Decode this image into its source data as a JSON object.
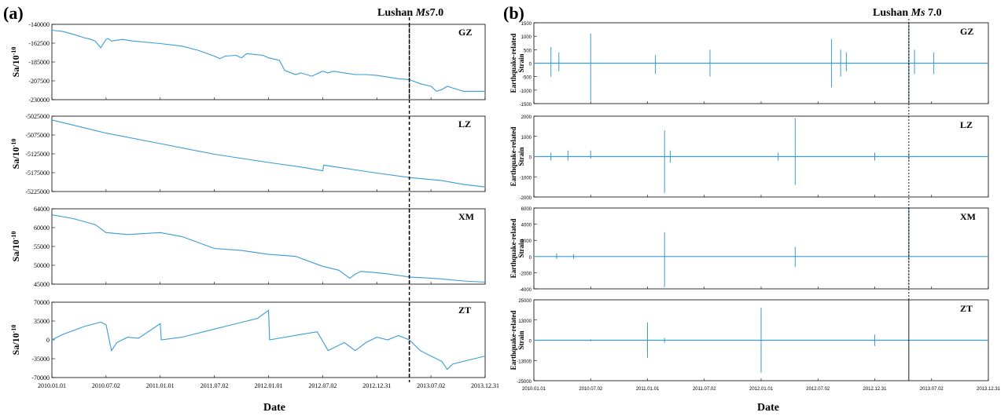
{
  "panel_a": {
    "label": "(a)",
    "event_label": {
      "prefix": "Lushan ",
      "magnitude": "Ms",
      "value": "7.0"
    },
    "xlabel": "Date",
    "ylabel": "Sa/10",
    "ylabel_exp": "-10",
    "x_ticks": [
      "2010.01.01",
      "2010.07.02",
      "2011.01.01",
      "2011.07.02",
      "2012.01.01",
      "2012.07.02",
      "2012.12.31",
      "2013.07.02",
      "2013.12.31"
    ]
  },
  "panel_b": {
    "label": "(b)",
    "event_label": {
      "prefix": "Lushan ",
      "magnitude": "Ms",
      "value": " 7.0"
    },
    "xlabel": "Date",
    "ylabel_line1": "Earthquake-related",
    "ylabel_line2": "Strain",
    "x_ticks": [
      "2010.01.01",
      "2010.07.02",
      "2011.01.01",
      "2011.07.02",
      "2012.01.01",
      "2012.07.02",
      "2012.12.31",
      "2013.07.02",
      "2013.12.31"
    ]
  },
  "colors": {
    "series": "#3a9bd5",
    "event_line": "#000000",
    "frame": "#000000"
  },
  "chart_data": [
    {
      "type": "line",
      "panel": "a",
      "station": "GZ",
      "ylim": [
        -230000,
        -140000
      ],
      "y_ticks": [
        "-140000",
        "-162500",
        "-185000",
        "-207500",
        "-230000"
      ],
      "event_x": 2013.3,
      "x": [
        2010.0,
        2010.1,
        2010.2,
        2010.3,
        2010.35,
        2010.4,
        2010.45,
        2010.5,
        2010.52,
        2010.55,
        2010.65,
        2010.75,
        2011.0,
        2011.2,
        2011.35,
        2011.5,
        2011.55,
        2011.6,
        2011.7,
        2011.75,
        2011.8,
        2011.95,
        2012.0,
        2012.1,
        2012.15,
        2012.25,
        2012.3,
        2012.4,
        2012.5,
        2012.55,
        2012.6,
        2012.7,
        2012.8,
        2012.9,
        2013.0,
        2013.1,
        2013.2,
        2013.3,
        2013.4,
        2013.5,
        2013.55,
        2013.6,
        2013.65,
        2013.7,
        2013.8,
        2013.9,
        2014.0
      ],
      "y": [
        -147000,
        -148500,
        -152000,
        -156000,
        -157500,
        -160000,
        -168000,
        -158000,
        -157000,
        -160000,
        -158000,
        -160000,
        -163000,
        -166000,
        -171000,
        -178000,
        -181000,
        -178000,
        -177000,
        -180000,
        -175000,
        -177000,
        -180000,
        -183000,
        -195000,
        -200000,
        -198000,
        -202000,
        -196000,
        -198000,
        -196000,
        -198000,
        -200000,
        -200000,
        -201000,
        -203000,
        -205000,
        -206000,
        -211000,
        -214000,
        -220000,
        -218000,
        -214000,
        -216000,
        -220000,
        -220000,
        -220000
      ]
    },
    {
      "type": "line",
      "panel": "a",
      "station": "LZ",
      "ylim": [
        -5225000,
        -5025000
      ],
      "y_ticks": [
        "-5025000",
        "-5075000",
        "-5125000",
        "-5175000",
        "-5225000"
      ],
      "event_x": 2013.3,
      "x": [
        2010.0,
        2010.5,
        2011.0,
        2011.5,
        2012.0,
        2012.3,
        2012.5,
        2012.51,
        2013.0,
        2013.3,
        2013.6,
        2013.8,
        2014.0
      ],
      "y": [
        -5035000,
        -5070000,
        -5098000,
        -5126000,
        -5148000,
        -5160000,
        -5170000,
        -5155000,
        -5176000,
        -5188000,
        -5196000,
        -5206000,
        -5213000
      ]
    },
    {
      "type": "line",
      "panel": "a",
      "station": "XM",
      "ylim": [
        45000,
        64000
      ],
      "y_ticks": [
        "64000",
        "60000",
        "55000",
        "50000",
        "45000"
      ],
      "event_x": 2013.3,
      "x": [
        2010.0,
        2010.2,
        2010.4,
        2010.5,
        2010.7,
        2011.0,
        2011.2,
        2011.3,
        2011.5,
        2011.75,
        2012.0,
        2012.25,
        2012.5,
        2012.65,
        2012.75,
        2012.8,
        2012.85,
        2012.95,
        2013.1,
        2013.3,
        2013.5,
        2013.6,
        2013.8,
        2014.0
      ],
      "y": [
        62500,
        61500,
        60000,
        58000,
        57500,
        58000,
        57000,
        56000,
        54000,
        53500,
        52500,
        52000,
        49500,
        48500,
        46500,
        47500,
        48200,
        48000,
        47600,
        46800,
        46500,
        46300,
        45800,
        45500
      ]
    },
    {
      "type": "line",
      "panel": "a",
      "station": "ZT",
      "ylim": [
        -70000,
        70000
      ],
      "y_ticks": [
        "70000",
        "35000",
        "0",
        "-35000",
        "-70000"
      ],
      "event_x": 2013.3,
      "x": [
        2010.0,
        2010.1,
        2010.3,
        2010.45,
        2010.5,
        2010.55,
        2010.6,
        2010.7,
        2010.8,
        2011.0,
        2011.01,
        2011.2,
        2011.4,
        2011.7,
        2011.9,
        2012.0,
        2012.01,
        2012.3,
        2012.45,
        2012.55,
        2012.7,
        2012.8,
        2012.9,
        2013.0,
        2013.1,
        2013.2,
        2013.3,
        2013.4,
        2013.5,
        2013.6,
        2013.65,
        2013.7,
        2013.8,
        2013.9,
        2014.0
      ],
      "y": [
        0,
        10000,
        25000,
        33000,
        28000,
        -20000,
        -5000,
        5000,
        3000,
        30000,
        0,
        5000,
        15000,
        30000,
        40000,
        55000,
        0,
        10000,
        15000,
        -20000,
        -5000,
        -20000,
        -5000,
        5000,
        0,
        8000,
        0,
        -20000,
        -30000,
        -40000,
        -55000,
        -45000,
        -40000,
        -35000,
        -30000
      ]
    },
    {
      "type": "line",
      "panel": "b",
      "station": "GZ",
      "ylim": [
        -1500,
        1500
      ],
      "y_ticks": [
        "1500",
        "1000",
        "500",
        "0",
        "-500",
        "-1000",
        "-1500"
      ],
      "event_x": 2013.3,
      "spikes": [
        [
          2010.15,
          600,
          -500
        ],
        [
          2010.22,
          400,
          -300
        ],
        [
          2010.5,
          1100,
          -1400
        ],
        [
          2011.07,
          300,
          -400
        ],
        [
          2011.55,
          500,
          -500
        ],
        [
          2012.62,
          900,
          -900
        ],
        [
          2012.7,
          500,
          -500
        ],
        [
          2012.75,
          400,
          -300
        ],
        [
          2013.3,
          1600,
          -1500
        ],
        [
          2013.35,
          500,
          -400
        ],
        [
          2013.52,
          400,
          -400
        ]
      ]
    },
    {
      "type": "line",
      "panel": "b",
      "station": "LZ",
      "ylim": [
        -2000,
        2000
      ],
      "y_ticks": [
        "2000",
        "1000",
        "0",
        "-1000",
        "-2000"
      ],
      "spikes": [
        [
          2010.15,
          200,
          -200
        ],
        [
          2010.3,
          300,
          -200
        ],
        [
          2010.5,
          300,
          -100
        ],
        [
          2011.15,
          1300,
          -1800
        ],
        [
          2011.2,
          300,
          -300
        ],
        [
          2012.15,
          200,
          -200
        ],
        [
          2012.3,
          1900,
          -1400
        ],
        [
          2013.0,
          200,
          -200
        ],
        [
          2013.3,
          200,
          -200
        ]
      ]
    },
    {
      "type": "line",
      "panel": "b",
      "station": "XM",
      "ylim": [
        -4000,
        6000
      ],
      "y_ticks": [
        "6000",
        "4000",
        "2000",
        "0",
        "-2000",
        "-4000"
      ],
      "event_x": 2013.3,
      "spikes": [
        [
          2010.2,
          400,
          -300
        ],
        [
          2010.35,
          300,
          -300
        ],
        [
          2011.15,
          3000,
          -3800
        ],
        [
          2012.3,
          1200,
          -1300
        ],
        [
          2013.3,
          6000,
          -400
        ]
      ]
    },
    {
      "type": "line",
      "panel": "b",
      "station": "ZT",
      "ylim": [
        -25000,
        25000
      ],
      "y_ticks": [
        "25000",
        "13000",
        "0",
        "-13000",
        "-25000"
      ],
      "event_x": 2013.3,
      "spikes": [
        [
          2010.5,
          600,
          -600
        ],
        [
          2011.0,
          11000,
          -11000
        ],
        [
          2011.15,
          1500,
          -1500
        ],
        [
          2012.0,
          20000,
          -20000
        ],
        [
          2013.0,
          3500,
          -3500
        ]
      ]
    }
  ]
}
